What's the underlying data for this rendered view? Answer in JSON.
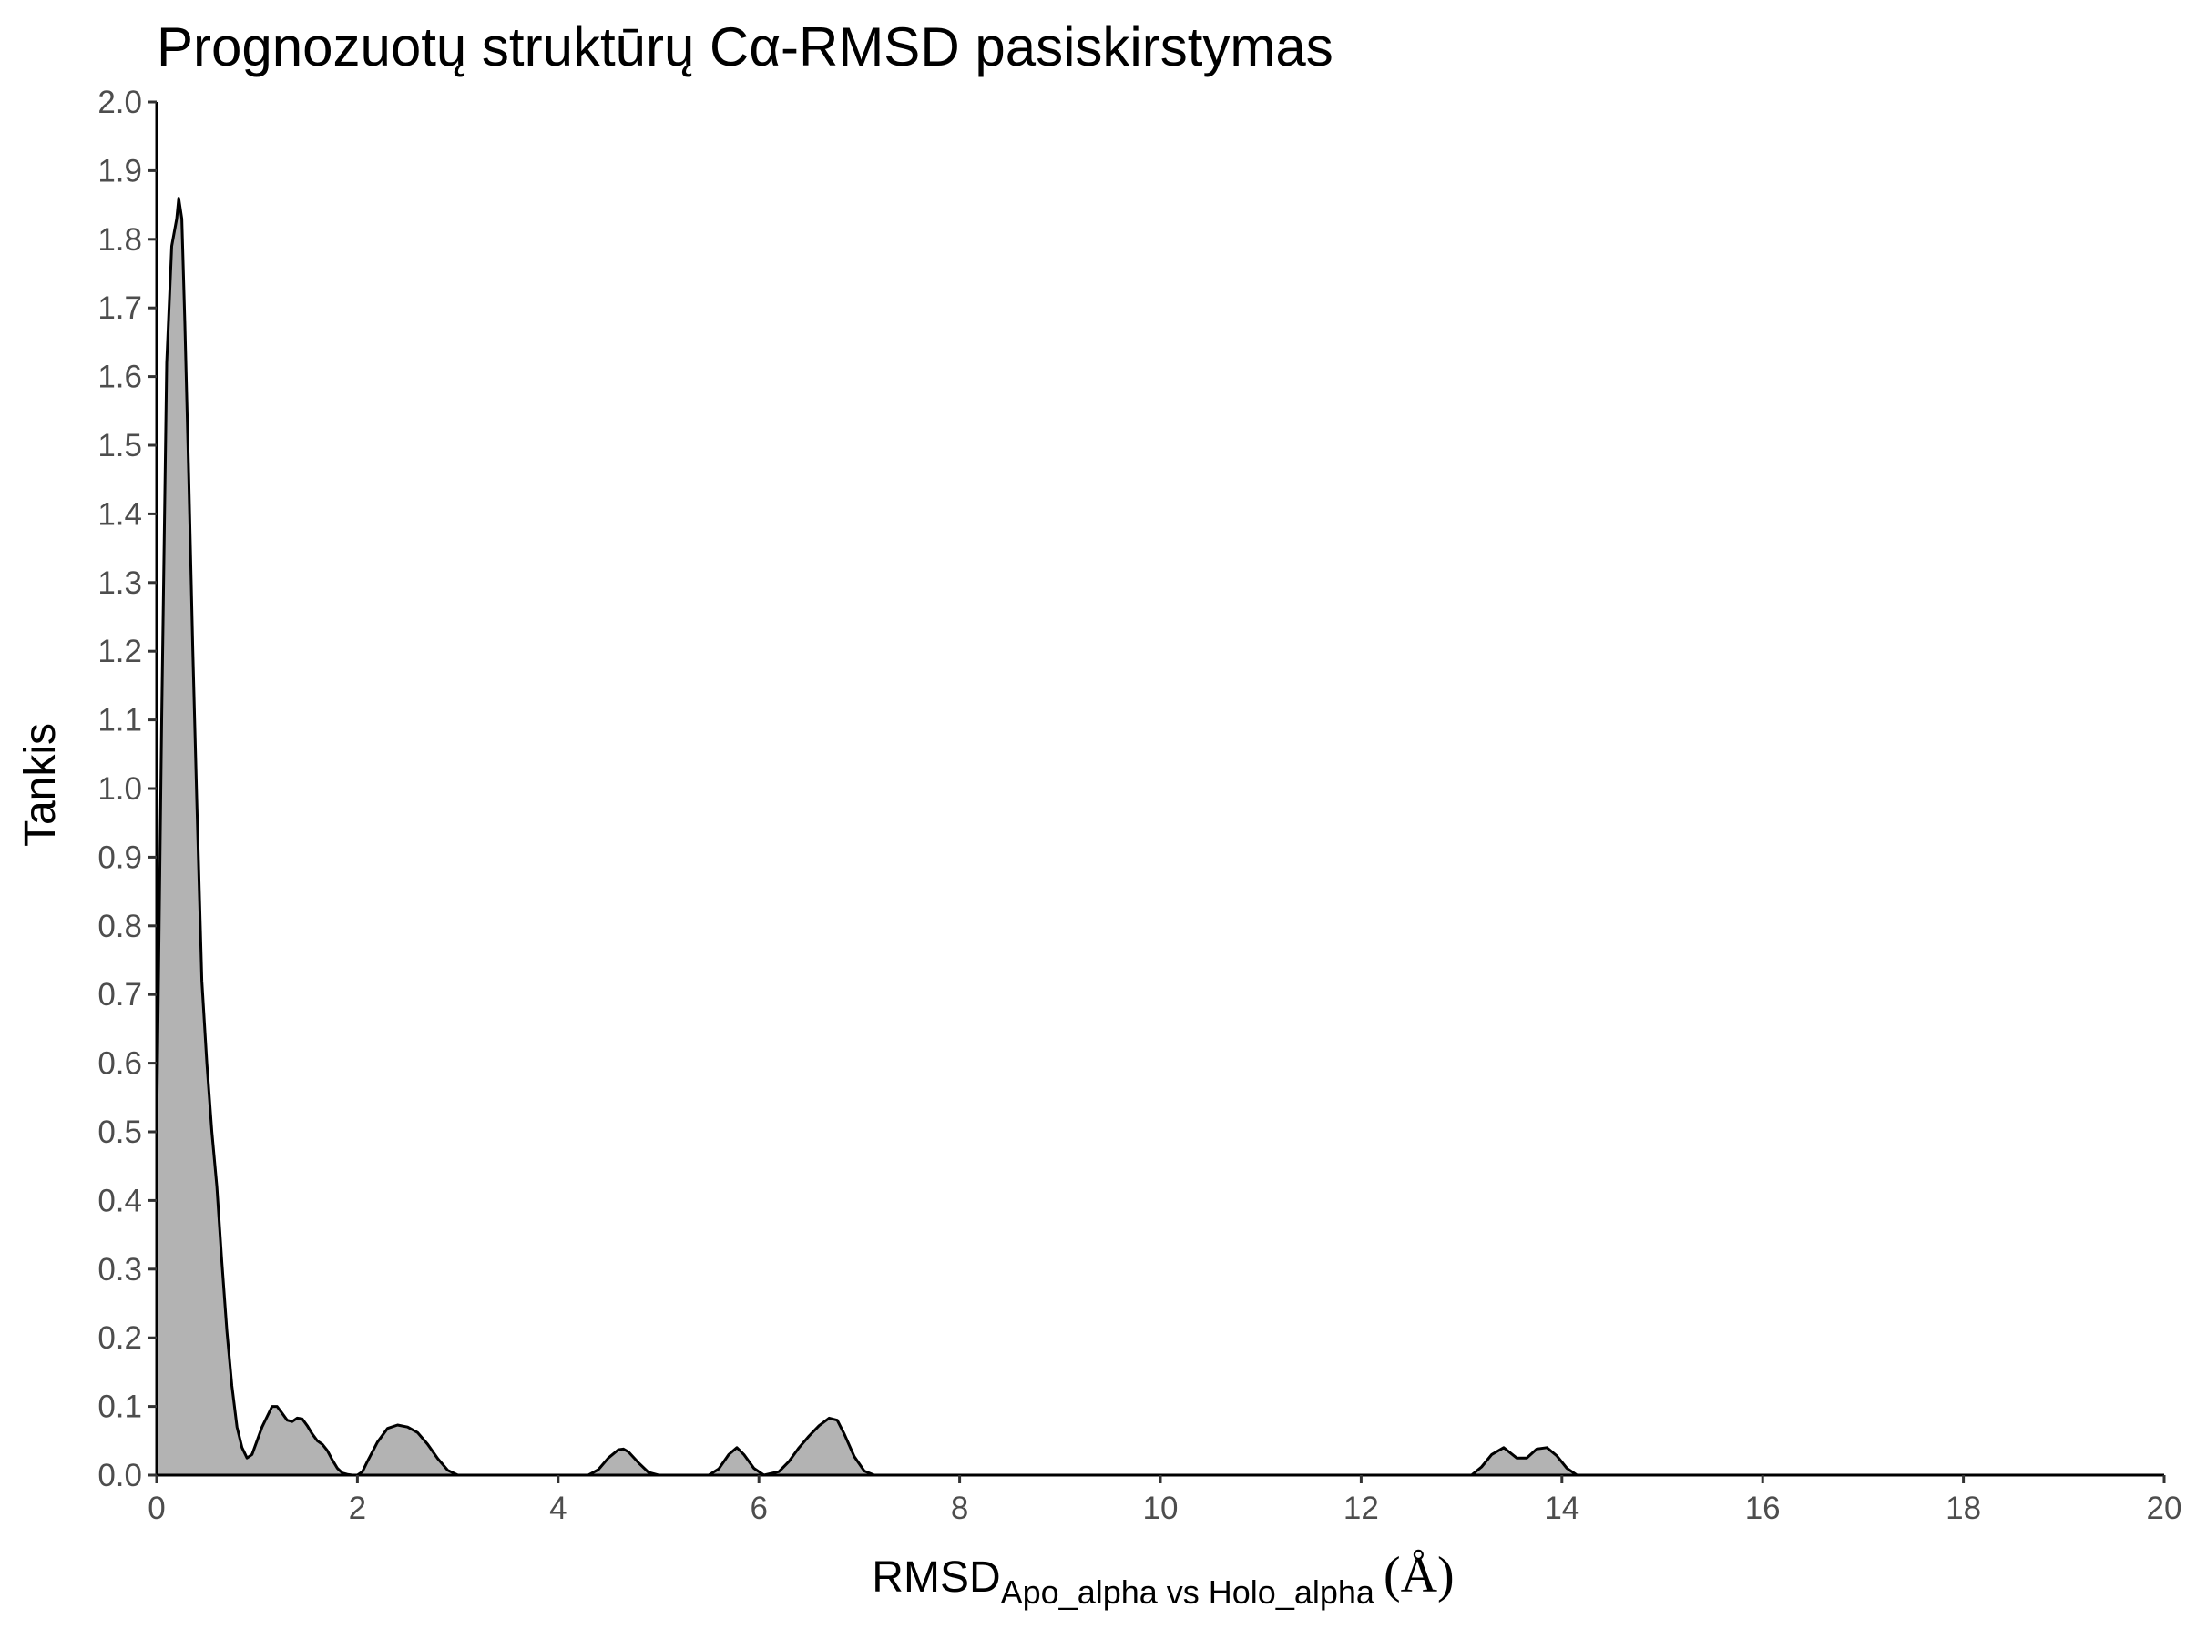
{
  "chart_data": {
    "type": "area",
    "title": "Prognozuotų struktūrų Cα-RMSD pasiskirstymas",
    "xlabel": {
      "main": "RMSD",
      "subscript": "Apo_alpha vs Holo_alpha",
      "unit": "(Å)"
    },
    "ylabel": "Tankis",
    "xlim": [
      0,
      20
    ],
    "ylim": [
      0,
      2.0
    ],
    "x_ticks": [
      "0",
      "2",
      "4",
      "6",
      "8",
      "10",
      "12",
      "14",
      "16",
      "18",
      "20"
    ],
    "y_ticks": [
      "0.0",
      "0.1",
      "0.2",
      "0.3",
      "0.4",
      "0.5",
      "0.6",
      "0.7",
      "0.8",
      "0.9",
      "1.0",
      "1.1",
      "1.2",
      "1.3",
      "1.4",
      "1.5",
      "1.6",
      "1.7",
      "1.8",
      "1.9",
      "2.0"
    ],
    "grid": false,
    "colors": {
      "fill": "#b3b3b3",
      "stroke": "#000000"
    },
    "series": [
      {
        "x": [
          0,
          0.05,
          0.1,
          0.15,
          0.2,
          0.22,
          0.25,
          0.28,
          0.32,
          0.36,
          0.4,
          0.45,
          0.5,
          0.55,
          0.6,
          0.65,
          0.7,
          0.75,
          0.8,
          0.85,
          0.9,
          0.95,
          1.0,
          1.05,
          1.1,
          1.15,
          1.2,
          1.25,
          1.3,
          1.35,
          1.4,
          1.45,
          1.5,
          1.55,
          1.6,
          1.65,
          1.7,
          1.75,
          1.8,
          1.85,
          1.9,
          1.95,
          2.0,
          2.05,
          2.1,
          2.2,
          2.3,
          2.4,
          2.5,
          2.6,
          2.7,
          2.8,
          2.9,
          3.0,
          3.1,
          3.2,
          3.3,
          4.3,
          4.4,
          4.5,
          4.6,
          4.65,
          4.7,
          4.8,
          4.9,
          5.0,
          5.5,
          5.6,
          5.7,
          5.78,
          5.85,
          5.95,
          6.05,
          6.2,
          6.3,
          6.4,
          6.5,
          6.6,
          6.7,
          6.78,
          6.85,
          6.95,
          7.05,
          7.15,
          13.1,
          13.2,
          13.3,
          13.42,
          13.55,
          13.65,
          13.75,
          13.85,
          13.95,
          14.05,
          14.15,
          20
        ],
        "y": [
          0.5,
          1.1,
          1.62,
          1.79,
          1.83,
          1.86,
          1.83,
          1.68,
          1.45,
          1.2,
          0.98,
          0.72,
          0.6,
          0.5,
          0.42,
          0.31,
          0.21,
          0.13,
          0.07,
          0.04,
          0.025,
          0.03,
          0.05,
          0.07,
          0.085,
          0.1,
          0.1,
          0.09,
          0.08,
          0.078,
          0.083,
          0.082,
          0.072,
          0.06,
          0.05,
          0.045,
          0.036,
          0.022,
          0.01,
          0.003,
          0.001,
          0.0,
          0.0,
          0.005,
          0.02,
          0.048,
          0.068,
          0.073,
          0.07,
          0.062,
          0.045,
          0.024,
          0.007,
          0.0,
          0.0,
          0.0,
          0.0,
          0.0,
          0.008,
          0.025,
          0.037,
          0.038,
          0.034,
          0.018,
          0.004,
          0.0,
          0.0,
          0.009,
          0.03,
          0.04,
          0.03,
          0.01,
          0.0,
          0.005,
          0.02,
          0.04,
          0.057,
          0.072,
          0.083,
          0.08,
          0.06,
          0.027,
          0.006,
          0.0,
          0.0,
          0.012,
          0.03,
          0.04,
          0.025,
          0.025,
          0.038,
          0.04,
          0.028,
          0.01,
          0.0,
          0.0
        ]
      }
    ]
  }
}
